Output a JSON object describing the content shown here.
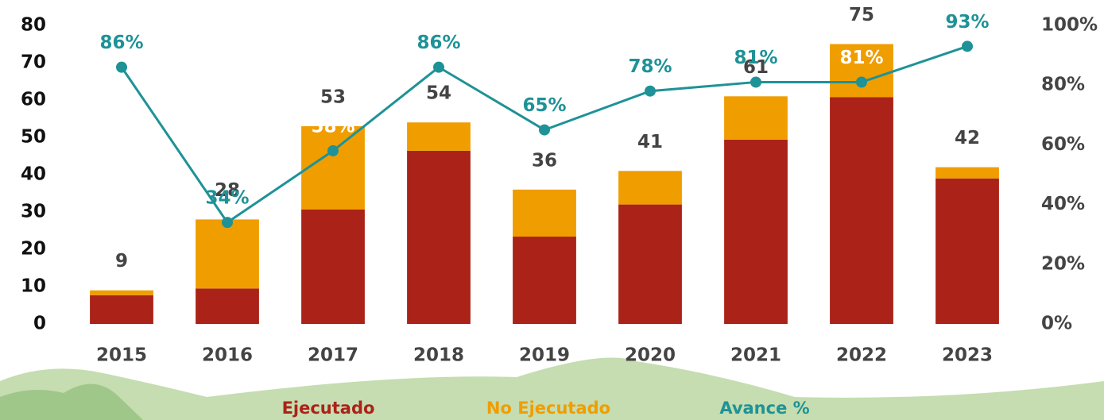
{
  "chart_data": {
    "type": "bar",
    "categories": [
      "2015",
      "2016",
      "2017",
      "2018",
      "2019",
      "2020",
      "2021",
      "2022",
      "2023"
    ],
    "series": [
      {
        "name": "Ejecutado",
        "color": "#ab2218",
        "values": [
          7.7,
          9.5,
          30.7,
          46.4,
          23.4,
          32,
          49.4,
          60.8,
          39
        ]
      },
      {
        "name": "No Ejecutado",
        "color": "#f09d00",
        "values": [
          1.3,
          18.5,
          22.3,
          7.6,
          12.6,
          9,
          11.6,
          14.2,
          3
        ]
      },
      {
        "name": "Avance %",
        "color": "#1e9297",
        "type": "line",
        "axis": "y2",
        "values": [
          86,
          34,
          58,
          86,
          65,
          78,
          81,
          81,
          93
        ],
        "value_labels": [
          "86%",
          "34%",
          "58%",
          "86%",
          "65%",
          "78%",
          "81%",
          "81%",
          "93%"
        ]
      }
    ],
    "totals": [
      9,
      28,
      53,
      54,
      36,
      41,
      61,
      75,
      42
    ],
    "ylim": [
      0,
      80
    ],
    "yticks": [
      0,
      10,
      20,
      30,
      40,
      50,
      60,
      70,
      80
    ],
    "y2lim": [
      0,
      100
    ],
    "y2ticks": [
      {
        "value": 0,
        "label": "0%"
      },
      {
        "value": 20,
        "label": "20%"
      },
      {
        "value": 40,
        "label": "40%"
      },
      {
        "value": 60,
        "label": "60%"
      },
      {
        "value": 80,
        "label": "80%"
      },
      {
        "value": 100,
        "label": "100%"
      }
    ],
    "stacked": true,
    "grid": false,
    "legend": "bottom"
  }
}
